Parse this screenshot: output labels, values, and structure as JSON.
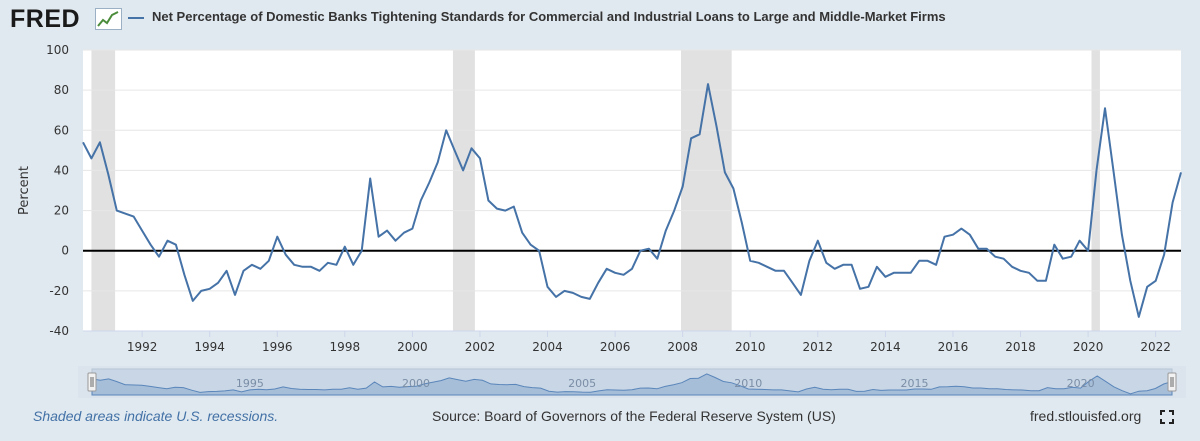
{
  "header": {
    "logo_text": "FRED",
    "series_title": "Net Percentage of Domestic Banks Tightening Standards for Commercial and Industrial Loans to Large and Middle-Market Firms"
  },
  "footer": {
    "note": "Shaded areas indicate U.S. recessions.",
    "source": "Source: Board of Governors of the Federal Reserve System (US)",
    "site": "fred.stlouisfed.org"
  },
  "colors": {
    "line": "#4572a7",
    "recession": "#e1e1e1",
    "background": "#e1e9f0",
    "plot_bg": "#ffffff"
  },
  "chart_data": {
    "type": "line",
    "title": "Net Percentage of Domestic Banks Tightening Standards for Commercial and Industrial Loans to Large and Middle-Market Firms",
    "xlabel": "",
    "ylabel": "Percent",
    "xlim": [
      1990.25,
      2022.75
    ],
    "ylim": [
      -40,
      100
    ],
    "yticks": [
      -40,
      -20,
      0,
      20,
      40,
      60,
      80,
      100
    ],
    "xticks": [
      1992,
      1994,
      1996,
      1998,
      2000,
      2002,
      2004,
      2006,
      2008,
      2010,
      2012,
      2014,
      2016,
      2018,
      2020,
      2022
    ],
    "navigator_labels": [
      "1995",
      "2000",
      "2005",
      "2010",
      "2015",
      "2020"
    ],
    "grid": true,
    "recessions": [
      [
        1990.5,
        1991.2
      ],
      [
        2001.2,
        2001.85
      ],
      [
        2007.95,
        2009.45
      ],
      [
        2020.1,
        2020.35
      ]
    ],
    "series": [
      {
        "name": "Net Percentage of Domestic Banks Tightening Standards for Commercial and Industrial Loans to Large and Middle-Market Firms",
        "x": [
          1990.25,
          1990.5,
          1990.75,
          1991.0,
          1991.25,
          1991.75,
          1992.0,
          1992.25,
          1992.5,
          1992.75,
          1993.0,
          1993.25,
          1993.5,
          1993.75,
          1994.0,
          1994.25,
          1994.5,
          1994.75,
          1995.0,
          1995.25,
          1995.5,
          1995.75,
          1996.0,
          1996.25,
          1996.5,
          1996.75,
          1997.0,
          1997.25,
          1997.5,
          1997.75,
          1998.0,
          1998.25,
          1998.5,
          1998.75,
          1999.0,
          1999.25,
          1999.5,
          1999.75,
          2000.0,
          2000.25,
          2000.5,
          2000.75,
          2001.0,
          2001.25,
          2001.5,
          2001.75,
          2002.0,
          2002.25,
          2002.5,
          2002.75,
          2003.0,
          2003.25,
          2003.5,
          2003.75,
          2004.0,
          2004.25,
          2004.5,
          2004.75,
          2005.0,
          2005.25,
          2005.5,
          2005.75,
          2006.0,
          2006.25,
          2006.5,
          2006.75,
          2007.0,
          2007.25,
          2007.5,
          2007.75,
          2008.0,
          2008.25,
          2008.5,
          2008.75,
          2009.0,
          2009.25,
          2009.5,
          2009.75,
          2010.0,
          2010.25,
          2010.5,
          2010.75,
          2011.0,
          2011.25,
          2011.5,
          2011.75,
          2012.0,
          2012.25,
          2012.5,
          2012.75,
          2013.0,
          2013.25,
          2013.5,
          2013.75,
          2014.0,
          2014.25,
          2014.5,
          2014.75,
          2015.0,
          2015.25,
          2015.5,
          2015.75,
          2016.0,
          2016.25,
          2016.5,
          2016.75,
          2017.0,
          2017.25,
          2017.5,
          2017.75,
          2018.0,
          2018.25,
          2018.5,
          2018.75,
          2019.0,
          2019.25,
          2019.5,
          2019.75,
          2020.0,
          2020.25,
          2020.5,
          2020.75,
          2021.0,
          2021.25,
          2021.5,
          2021.75,
          2022.0,
          2022.25,
          2022.5,
          2022.75
        ],
        "values": [
          54,
          46,
          54,
          38,
          20,
          17,
          10,
          3,
          -3,
          5,
          3,
          -12,
          -25,
          -20,
          -19,
          -16,
          -10,
          -22,
          -10,
          -7,
          -9,
          -5,
          7,
          -2,
          -7,
          -8,
          -8,
          -10,
          -6,
          -7,
          2,
          -7,
          0,
          36,
          7,
          10,
          5,
          9,
          11,
          25,
          34,
          44,
          60,
          50,
          40,
          51,
          46,
          25,
          21,
          20,
          22,
          9,
          3,
          0,
          -18,
          -23,
          -20,
          -21,
          -23,
          -24,
          -16,
          -9,
          -11,
          -12,
          -9,
          0,
          1,
          -4,
          10,
          20,
          32,
          56,
          58,
          83,
          62,
          39,
          31,
          14,
          -5,
          -6,
          -8,
          -10,
          -10,
          -16,
          -22,
          -5,
          5,
          -6,
          -9,
          -7,
          -7,
          -19,
          -18,
          -8,
          -13,
          -11,
          -11,
          -11,
          -5,
          -5,
          -7,
          7,
          8,
          11,
          8,
          1,
          1,
          -3,
          -4,
          -8,
          -10,
          -11,
          -15,
          -15,
          3,
          -4,
          -3,
          5,
          0,
          40,
          71,
          40,
          8,
          -15,
          -33,
          -18,
          -15,
          -2,
          24,
          39
        ]
      }
    ]
  }
}
